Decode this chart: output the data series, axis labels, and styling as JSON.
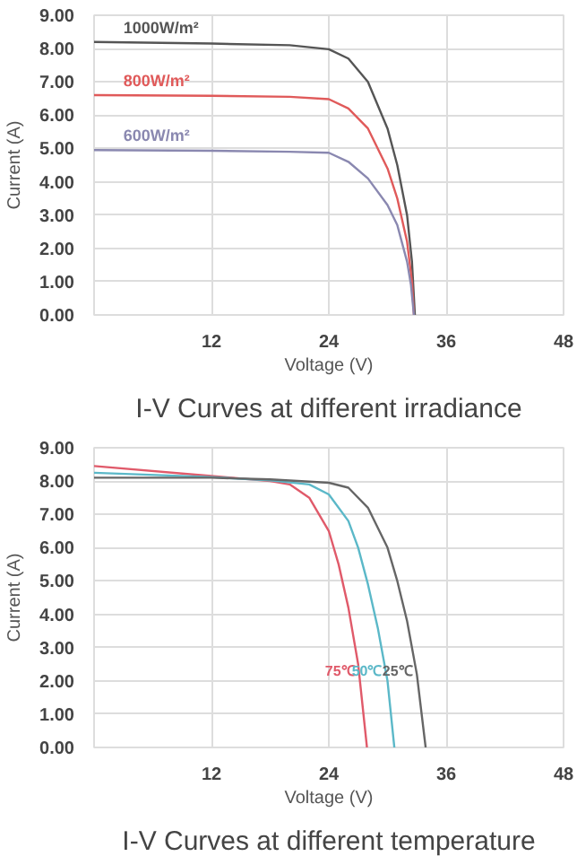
{
  "chart_data": [
    {
      "type": "line",
      "title": "I-V Curves at different irradiance",
      "xlabel": "Voltage (V)",
      "ylabel": "Current (A)",
      "xlim": [
        0,
        48
      ],
      "xticks": [
        12,
        24,
        36,
        48
      ],
      "ylim": [
        0,
        9
      ],
      "yticks": [
        {
          "value": 0,
          "label": "0.00"
        },
        {
          "value": 1,
          "label": "1.00"
        },
        {
          "value": 2,
          "label": "2.00"
        },
        {
          "value": 3,
          "label": "3.00"
        },
        {
          "value": 4,
          "label": "4.00"
        },
        {
          "value": 5,
          "label": "5.00"
        },
        {
          "value": 6,
          "label": "6.00"
        },
        {
          "value": 7,
          "label": "7.00"
        },
        {
          "value": 8,
          "label": "8.00"
        },
        {
          "value": 9,
          "label": "9.00"
        }
      ],
      "grid": true,
      "marker": "none",
      "line_style": "solid",
      "series": [
        {
          "name": "1000W/m²",
          "color": "#555555",
          "x": [
            0,
            12,
            20,
            24,
            26,
            28,
            30,
            31,
            32,
            32.5,
            32.8
          ],
          "values": [
            8.2,
            8.15,
            8.1,
            7.98,
            7.7,
            7.0,
            5.6,
            4.5,
            3.0,
            1.6,
            0
          ]
        },
        {
          "name": "800W/m²",
          "color": "#e05a5a",
          "x": [
            0,
            12,
            20,
            24,
            26,
            28,
            30,
            31,
            32,
            32.5,
            32.7
          ],
          "values": [
            6.6,
            6.58,
            6.55,
            6.48,
            6.2,
            5.6,
            4.4,
            3.5,
            2.2,
            1.0,
            0
          ]
        },
        {
          "name": "600W/m²",
          "color": "#8a88b0",
          "x": [
            0,
            12,
            20,
            24,
            26,
            28,
            30,
            31,
            32,
            32.4,
            32.7
          ],
          "values": [
            4.95,
            4.93,
            4.9,
            4.87,
            4.6,
            4.1,
            3.3,
            2.7,
            1.6,
            0.9,
            0
          ]
        }
      ]
    },
    {
      "type": "line",
      "title": "I-V Curves at different temperature",
      "xlabel": "Voltage (V)",
      "ylabel": "Current (A)",
      "xlim": [
        0,
        48
      ],
      "xticks": [
        12,
        24,
        36,
        48
      ],
      "ylim": [
        0,
        9
      ],
      "yticks": [
        {
          "value": 0,
          "label": "0.00"
        },
        {
          "value": 1,
          "label": "1.00"
        },
        {
          "value": 2,
          "label": "2.00"
        },
        {
          "value": 3,
          "label": "3.00"
        },
        {
          "value": 4,
          "label": "4.00"
        },
        {
          "value": 5,
          "label": "5.00"
        },
        {
          "value": 6,
          "label": "6.00"
        },
        {
          "value": 7,
          "label": "7.00"
        },
        {
          "value": 8,
          "label": "8.00"
        },
        {
          "value": 9,
          "label": "9.00"
        }
      ],
      "grid": true,
      "marker": "none",
      "line_style": "solid",
      "series": [
        {
          "name": "75℃",
          "color": "#e05a6a",
          "x": [
            0,
            12,
            18,
            20,
            22,
            24,
            25,
            26,
            27,
            27.9
          ],
          "values": [
            8.45,
            8.15,
            8.0,
            7.9,
            7.5,
            6.5,
            5.5,
            4.2,
            2.5,
            0
          ]
        },
        {
          "name": "50℃",
          "color": "#5bb8c8",
          "x": [
            0,
            12,
            18,
            22,
            24,
            26,
            27,
            28,
            29,
            30,
            30.7
          ],
          "values": [
            8.25,
            8.12,
            8.02,
            7.9,
            7.6,
            6.8,
            6.0,
            4.9,
            3.6,
            2.0,
            0
          ]
        },
        {
          "name": "25℃",
          "color": "#666666",
          "x": [
            0,
            12,
            18,
            24,
            26,
            28,
            30,
            31,
            32,
            33,
            33.9
          ],
          "values": [
            8.1,
            8.1,
            8.05,
            7.95,
            7.8,
            7.2,
            6.0,
            5.0,
            3.8,
            2.2,
            0
          ]
        }
      ]
    }
  ]
}
